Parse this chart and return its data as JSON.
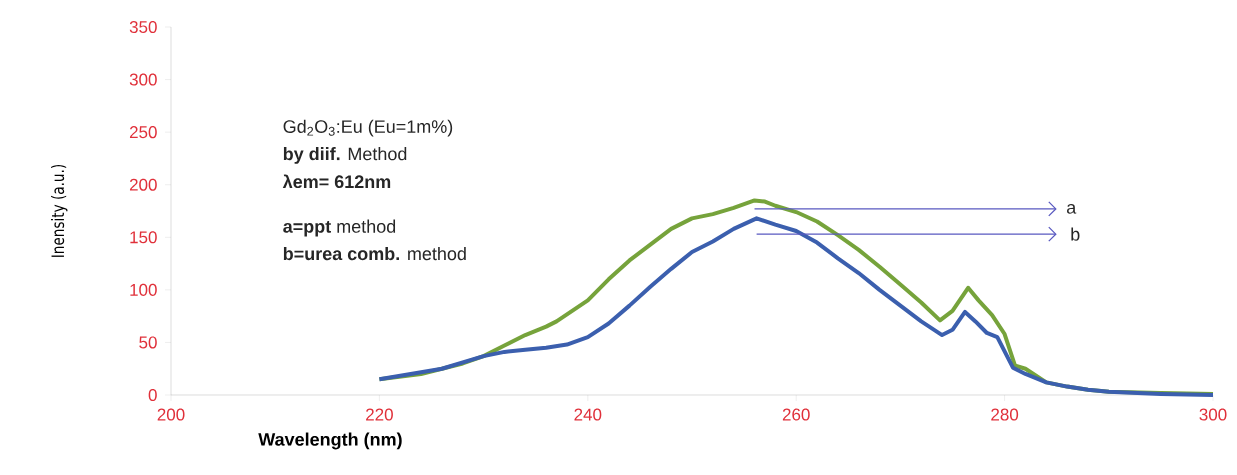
{
  "chart_data": {
    "type": "line",
    "xlabel": "Wavelength (nm)",
    "ylabel": "Inensity (a.u.)",
    "xlim": [
      200,
      300
    ],
    "xticks": [
      200,
      220,
      240,
      260,
      280,
      300
    ],
    "ylim": [
      0,
      350
    ],
    "yticks": [
      0,
      50,
      100,
      150,
      200,
      250,
      300,
      350
    ],
    "grid": false,
    "marker": "none",
    "line_style": "solid",
    "annotations": [
      "Gd$_{2}$O$_{3}$:Eu (Eu=1m%)",
      "**by diif.** Method",
      "**λem= 612nm**",
      "**a=ppt** method",
      "**b=urea comb.** method",
      "a",
      "b"
    ],
    "series": [
      {
        "color": "#76a33b",
        "x": [
          220,
          224,
          228,
          230,
          232,
          234,
          236,
          237,
          240,
          242,
          244,
          246,
          248,
          250,
          252,
          254,
          256,
          257,
          258,
          260,
          262,
          264,
          266,
          268,
          270,
          272,
          273.8,
          275,
          276.5,
          277.5,
          278.8,
          280,
          281,
          282,
          284,
          286,
          288,
          290,
          295,
          300
        ],
        "values": [
          15,
          20,
          30,
          37,
          47,
          57,
          65,
          70,
          90,
          110,
          128,
          143,
          158,
          168,
          172,
          178,
          185,
          184,
          180,
          174,
          165,
          152,
          138,
          122,
          105,
          88,
          71,
          80,
          102,
          90,
          76,
          58,
          28,
          25,
          12,
          8,
          5,
          3,
          2,
          1
        ]
      },
      {
        "color": "#3b5fae",
        "x": [
          220,
          226,
          230,
          232,
          234,
          236,
          238,
          240,
          242,
          244,
          246,
          248,
          250,
          252,
          254,
          256.2,
          258,
          260,
          262,
          264,
          266,
          268,
          270,
          272,
          274,
          275,
          276.2,
          277.2,
          278.3,
          279.3,
          280.8,
          282,
          284,
          286,
          288,
          290,
          295,
          300
        ],
        "values": [
          15,
          25,
          37,
          41,
          43,
          45,
          48,
          55,
          68,
          85,
          103,
          120,
          136,
          146,
          158,
          168,
          162,
          156,
          145,
          130,
          116,
          100,
          85,
          70,
          57,
          62,
          79,
          70,
          59,
          55,
          26,
          20,
          12,
          8,
          5,
          3,
          1,
          0
        ]
      }
    ]
  }
}
